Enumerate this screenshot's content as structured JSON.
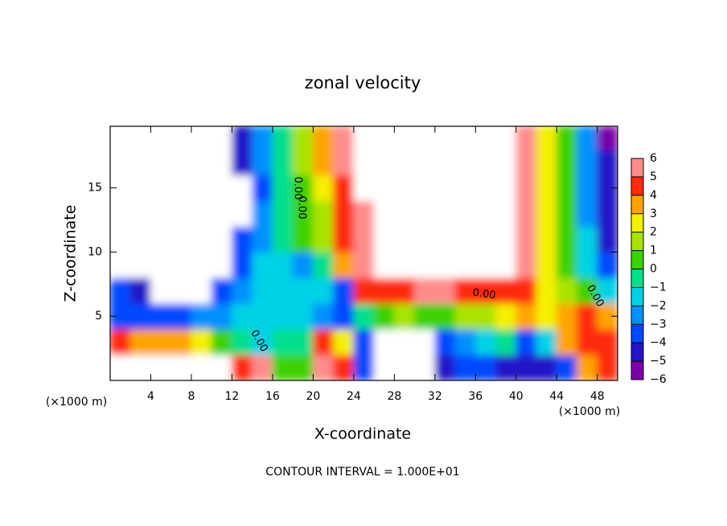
{
  "chart_data": {
    "type": "contour",
    "title": "zonal velocity",
    "xlabel": "X-coordinate",
    "ylabel": "Z-coordinate",
    "xunit": "(×1000 m)",
    "yunit": "(×1000 m)",
    "footer": "CONTOUR INTERVAL = 1.000E+01",
    "contour_labels": [
      "0.00",
      "0.00",
      "0.00",
      "0.00",
      "0.00"
    ],
    "xlim": [
      0,
      50
    ],
    "ylim": [
      0,
      19.8
    ],
    "xticks": [
      4,
      8,
      12,
      16,
      20,
      24,
      28,
      32,
      36,
      40,
      44,
      48
    ],
    "yticks": [
      5,
      10,
      15
    ],
    "cbar_lim": [
      -6,
      6
    ],
    "cbar_ticks": [
      {
        "value": -6,
        "label": "−6"
      },
      {
        "value": -5,
        "label": "−5"
      },
      {
        "value": -4,
        "label": "−4"
      },
      {
        "value": -3,
        "label": "−3"
      },
      {
        "value": -2,
        "label": "−2"
      },
      {
        "value": -1,
        "label": "−1"
      },
      0,
      1,
      2,
      3,
      4,
      5,
      6
    ],
    "colors": [
      "#7a00a8",
      "#2414c8",
      "#0048ff",
      "#0090ff",
      "#00d2e6",
      "#00e08c",
      "#3cd200",
      "#a8e400",
      "#f4f000",
      "#ffa400",
      "#ff2a10",
      "#ff8c8c"
    ],
    "cell_x": 2,
    "cell_z": 2,
    "z": [
      [
        8,
        8,
        8,
        8,
        8,
        8,
        4,
        5,
        0,
        0,
        5,
        4,
        -4,
        -8,
        -8,
        -8,
        -5,
        -4,
        -4,
        -5,
        -5,
        -5,
        -4,
        3,
        4
      ],
      [
        4,
        3,
        3,
        3,
        2,
        0,
        -1,
        -2,
        -1,
        -1,
        4,
        2,
        -4,
        -8,
        -8,
        -8,
        -4,
        -3,
        -2,
        -1,
        -4,
        -2,
        3,
        4,
        4
      ],
      [
        -4,
        -4,
        -4,
        -4,
        -3,
        -3,
        -2,
        -2,
        -2,
        -2,
        -3,
        -4,
        -1,
        0,
        1,
        0,
        0,
        1,
        1,
        2,
        3,
        2,
        3,
        4,
        3
      ],
      [
        -4,
        -5,
        -8,
        -8,
        -8,
        -4,
        -3,
        -2,
        -2,
        -2,
        -2,
        -4,
        4,
        4,
        4,
        5,
        5,
        4,
        4,
        4,
        4,
        2,
        1,
        0,
        -2
      ],
      [
        -8,
        -8,
        -8,
        -8,
        -8,
        -8,
        -4,
        -2,
        -2,
        -3,
        -1,
        3,
        5,
        8,
        8,
        8,
        8,
        8,
        8,
        8,
        5,
        2,
        0,
        -2,
        -4
      ],
      [
        -8,
        -8,
        -8,
        -8,
        -8,
        -8,
        -4,
        -3,
        -1,
        0,
        1,
        4,
        5,
        8,
        8,
        8,
        8,
        8,
        8,
        8,
        5,
        2,
        0,
        -2,
        -5
      ],
      [
        -8,
        -8,
        -8,
        -8,
        -8,
        -8,
        -8,
        -3,
        -1,
        0,
        1,
        4,
        5,
        8,
        8,
        8,
        8,
        8,
        8,
        8,
        5,
        2,
        0,
        -3,
        -5
      ],
      [
        -8,
        -8,
        -8,
        -8,
        -8,
        -8,
        -8,
        -4,
        -1,
        0,
        2,
        4,
        8,
        8,
        8,
        8,
        8,
        8,
        8,
        8,
        5,
        2,
        0,
        -3,
        -5
      ],
      [
        -8,
        -8,
        -8,
        -8,
        -8,
        -8,
        -5,
        -3,
        -1,
        1,
        3,
        5,
        8,
        8,
        8,
        8,
        8,
        8,
        8,
        8,
        5,
        2,
        0,
        -3,
        -5
      ],
      [
        -8,
        -8,
        -8,
        -8,
        -8,
        -8,
        -5,
        -3,
        -1,
        1,
        3,
        5,
        8,
        8,
        8,
        8,
        8,
        8,
        8,
        8,
        5,
        2,
        0,
        -3,
        -6
      ]
    ]
  }
}
